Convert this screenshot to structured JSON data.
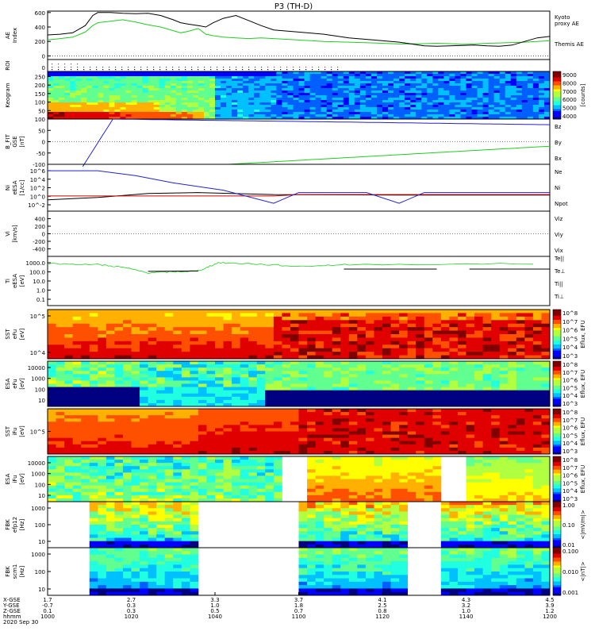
{
  "title": "P3 (TH-D)",
  "date_label": "2020 Sep 30",
  "chart_data": [
    {
      "type": "line",
      "panel": "ae",
      "ylabel": "AE Index",
      "ylim": [
        -50,
        620
      ],
      "yticks": [
        0,
        200,
        400,
        600
      ],
      "x": [
        1000,
        1005,
        1010,
        1015,
        1018,
        1020,
        1025,
        1030,
        1035,
        1040,
        1045,
        1050,
        1053,
        1056,
        1060,
        1063,
        1066,
        1070,
        1075,
        1080,
        1085,
        1090,
        1100,
        1110,
        1120,
        1130,
        1140,
        1150,
        1155,
        1160,
        1165,
        1170,
        1175,
        1180,
        1185,
        1190,
        1195,
        1200
      ],
      "series": [
        {
          "name": "Kyoto proxy AE",
          "color": "#22cc22",
          "values": [
            220,
            240,
            260,
            330,
            420,
            460,
            480,
            500,
            470,
            430,
            400,
            350,
            320,
            340,
            380,
            300,
            280,
            260,
            250,
            240,
            250,
            240,
            220,
            200,
            190,
            180,
            165,
            170,
            175,
            170,
            160,
            165,
            175,
            180,
            185,
            190,
            200,
            210
          ]
        },
        {
          "name": "Themis AE",
          "color": "#000000",
          "values": [
            290,
            300,
            320,
            420,
            560,
            600,
            600,
            590,
            585,
            590,
            560,
            500,
            460,
            440,
            420,
            400,
            460,
            520,
            560,
            490,
            420,
            360,
            330,
            300,
            250,
            220,
            190,
            140,
            135,
            140,
            145,
            150,
            140,
            135,
            150,
            200,
            250,
            270
          ]
        }
      ]
    },
    {
      "type": "scatter",
      "panel": "roi",
      "ylabel": "ROI",
      "y_tick": "0"
    },
    {
      "type": "heatmap",
      "panel": "keogram",
      "ylabel": "Keogram",
      "yticks": [
        50,
        100,
        150,
        200,
        250
      ],
      "colorbar": {
        "label": "[counts]",
        "ticks": [
          4000,
          5000,
          6000,
          7000,
          8000,
          9000
        ],
        "scale": "linear"
      }
    },
    {
      "type": "line",
      "panel": "bfield",
      "ylabel": "B_FIT GSE [nT]",
      "ylim": [
        -100,
        100
      ],
      "yticks": [
        -100,
        -50,
        0,
        50,
        100
      ],
      "series": [
        {
          "name": "Bz",
          "color": "#cc0000"
        },
        {
          "name": "By",
          "color": "#22aa22"
        },
        {
          "name": "Bx",
          "color": "#2222cc"
        }
      ]
    },
    {
      "type": "line",
      "panel": "density",
      "ylabel": "Ni eESA [1/cc]",
      "yscale": "log",
      "ytick_labels": [
        "10^6",
        "10^4",
        "10^2",
        "10^0",
        "10^-2"
      ],
      "series": [
        {
          "name": "Ne",
          "color": "#cc0000"
        },
        {
          "name": "Ni",
          "color": "#000000"
        },
        {
          "name": "Npot",
          "color": "#2222cc"
        }
      ]
    },
    {
      "type": "line",
      "panel": "velocity",
      "ylabel": "Vi [km/s]",
      "ylim": [
        -600,
        600
      ],
      "yticks": [
        -400,
        -200,
        0,
        200,
        400
      ],
      "series": [
        {
          "name": "Viz",
          "color": "#cc0000"
        },
        {
          "name": "Viy",
          "color": "#22aa22"
        },
        {
          "name": "Vix",
          "color": "#2222cc"
        }
      ]
    },
    {
      "type": "line",
      "panel": "temperature",
      "ylabel": "Ti eESA [eV]",
      "yscale": "log",
      "ytick_labels": [
        "1000.0",
        "100.0",
        "10.0",
        "1.0",
        "0.1"
      ],
      "series": [
        {
          "name": "Te||",
          "color": "#000000"
        },
        {
          "name": "Te⊥",
          "color": "#cc0000"
        },
        {
          "name": "Ti||",
          "color": "#22aa22"
        },
        {
          "name": "Ti⊥",
          "color": "#2222cc"
        }
      ]
    },
    {
      "type": "heatmap",
      "panel": "sst_e",
      "ylabel": "SST eFu [eV]",
      "ytick_labels": [
        "10^5",
        "10^4"
      ],
      "colorbar": {
        "label": "Eflux, EFU",
        "ticks": [
          "10^8",
          "10^7",
          "10^6",
          "10^5",
          "10^4",
          "10^3"
        ]
      }
    },
    {
      "type": "heatmap",
      "panel": "esa_e",
      "ylabel": "ESA eFu [eV]",
      "ytick_labels": [
        "10000",
        "1000",
        "100",
        "10"
      ],
      "colorbar": {
        "label": "Eflux, EFU",
        "ticks": [
          "10^8",
          "10^7",
          "10^6",
          "10^5",
          "10^4",
          "10^3"
        ]
      }
    },
    {
      "type": "heatmap",
      "panel": "sst_i",
      "ylabel": "SST iFu [eV]",
      "ytick_labels": [
        "10^5"
      ],
      "colorbar": {
        "label": "Eflux, EFU",
        "ticks": [
          "10^8",
          "10^7",
          "10^6",
          "10^5",
          "10^4",
          "10^3"
        ]
      }
    },
    {
      "type": "heatmap",
      "panel": "esa_i",
      "ylabel": "ESA iFu [eV]",
      "ytick_labels": [
        "10000",
        "1000",
        "100",
        "10"
      ],
      "colorbar": {
        "label": "Eflux, EFU",
        "ticks": [
          "10^8",
          "10^7",
          "10^6",
          "10^5",
          "10^4",
          "10^3"
        ]
      }
    },
    {
      "type": "heatmap",
      "panel": "fbk_e",
      "ylabel": "FBK efp12 [Hz]",
      "ytick_labels": [
        "1000",
        "100",
        "10"
      ],
      "colorbar": {
        "label": "<|mV/m|>",
        "ticks": [
          "1.00",
          "0.10",
          "0.01"
        ]
      }
    },
    {
      "type": "heatmap",
      "panel": "fbk_b",
      "ylabel": "FBK scm1 [Hz]",
      "ytick_labels": [
        "1000",
        "100",
        "10"
      ],
      "colorbar": {
        "label": "<|nT|>",
        "ticks": [
          "0.100",
          "0.010",
          "0.001"
        ]
      }
    }
  ],
  "xaxis": {
    "row_labels": [
      "X-GSE",
      "Y-GSE",
      "Z-GSE",
      "hhmm",
      "2020 Sep 30"
    ],
    "ticks": [
      {
        "x": "1.7",
        "y": "-0.7",
        "z": "0.1",
        "t": "1000"
      },
      {
        "x": "2.7",
        "y": "0.3",
        "z": "0.3",
        "t": "1020"
      },
      {
        "x": "3.3",
        "y": "1.0",
        "z": "0.5",
        "t": "1040"
      },
      {
        "x": "3.7",
        "y": "1.8",
        "z": "0.7",
        "t": "1100"
      },
      {
        "x": "4.1",
        "y": "2.5",
        "z": "0.8",
        "t": "1120"
      },
      {
        "x": "4.3",
        "y": "3.2",
        "z": "1.0",
        "t": "1140"
      },
      {
        "x": "4.5",
        "y": "3.9",
        "z": "1.2",
        "t": "1200"
      }
    ]
  },
  "legends": {
    "ae": [
      "Kyoto proxy AE",
      "Themis AE"
    ]
  }
}
